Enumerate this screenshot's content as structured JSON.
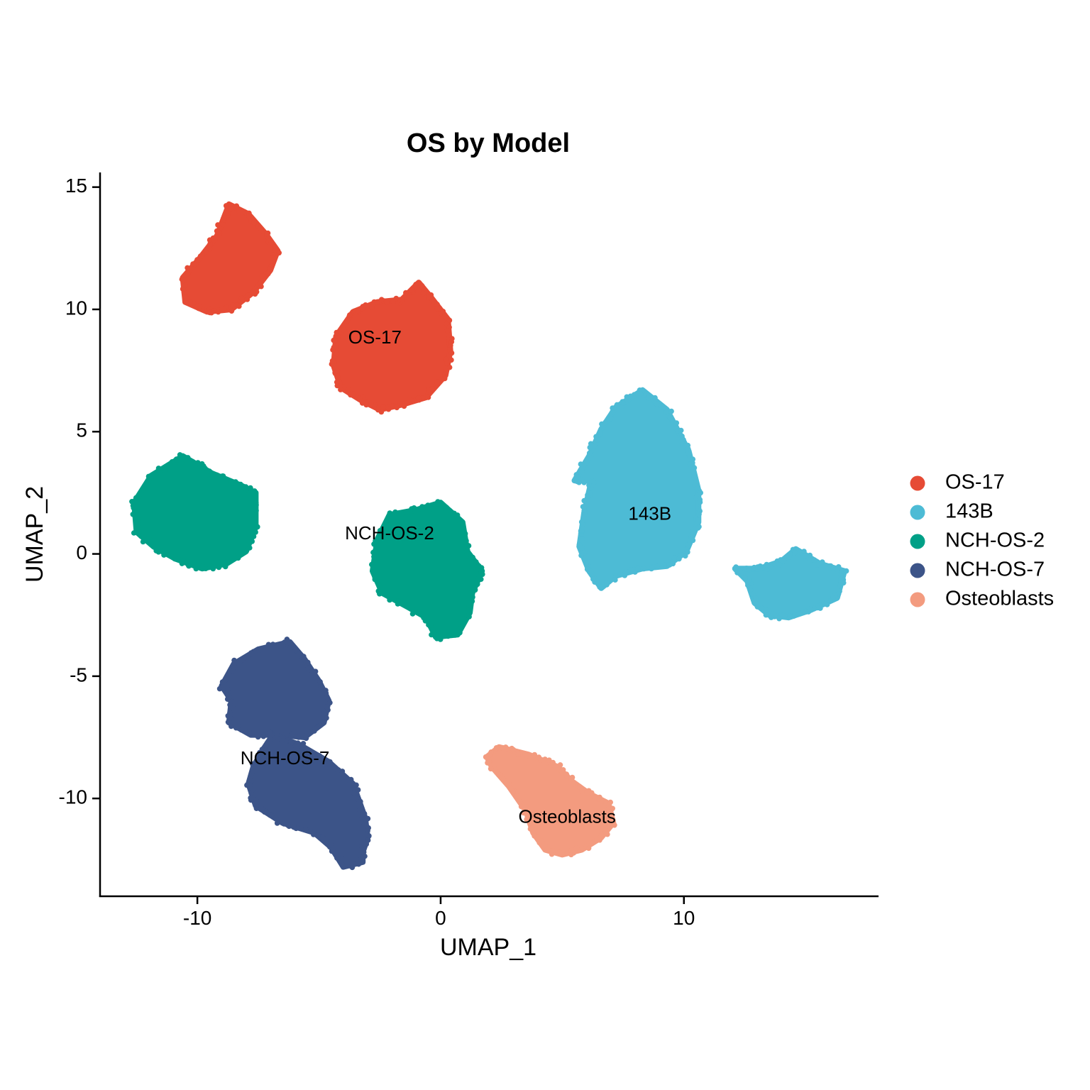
{
  "chart_data": {
    "type": "scatter",
    "title": "OS by Model",
    "xlabel": "UMAP_1",
    "ylabel": "UMAP_2",
    "xlim": [
      -14,
      18
    ],
    "ylim": [
      -14,
      15.6
    ],
    "xticks": [
      -10,
      0,
      10
    ],
    "yticks": [
      -10,
      -5,
      0,
      5,
      10,
      15
    ],
    "grid": false,
    "legend_position": "right",
    "series": [
      {
        "name": "OS-17",
        "color": "#E64B35",
        "clusters": [
          {
            "outline": [
              [
                -8.7,
                14.3
              ],
              [
                -7.9,
                13.9
              ],
              [
                -7.2,
                13.1
              ],
              [
                -6.7,
                12.4
              ],
              [
                -7.0,
                11.6
              ],
              [
                -7.7,
                10.7
              ],
              [
                -8.6,
                10.0
              ],
              [
                -9.6,
                9.9
              ],
              [
                -10.5,
                10.3
              ],
              [
                -10.6,
                11.3
              ],
              [
                -9.9,
                12.1
              ],
              [
                -9.2,
                13.0
              ]
            ]
          },
          {
            "outline": [
              [
                -0.9,
                11.1
              ],
              [
                -0.4,
                10.5
              ],
              [
                0.3,
                9.6
              ],
              [
                0.4,
                8.3
              ],
              [
                0.2,
                7.3
              ],
              [
                -0.6,
                6.4
              ],
              [
                -1.6,
                6.1
              ],
              [
                -2.5,
                5.9
              ],
              [
                -3.3,
                6.3
              ],
              [
                -4.1,
                6.8
              ],
              [
                -4.4,
                7.7
              ],
              [
                -4.3,
                8.9
              ],
              [
                -3.6,
                9.9
              ],
              [
                -2.6,
                10.3
              ],
              [
                -1.6,
                10.4
              ]
            ],
            "label": "OS-17",
            "label_x": -2.7,
            "label_y": 8.8
          }
        ]
      },
      {
        "name": "143B",
        "color": "#4DBBD5",
        "clusters": [
          {
            "outline": [
              [
                8.3,
                6.7
              ],
              [
                9.3,
                5.9
              ],
              [
                10.2,
                4.2
              ],
              [
                10.6,
                2.6
              ],
              [
                10.6,
                1.3
              ],
              [
                10.1,
                0.1
              ],
              [
                9.3,
                -0.5
              ],
              [
                8.3,
                -0.6
              ],
              [
                7.2,
                -0.9
              ],
              [
                6.6,
                -1.4
              ],
              [
                6.1,
                -0.7
              ],
              [
                5.7,
                0.3
              ],
              [
                5.9,
                1.7
              ],
              [
                6.2,
                3.0
              ],
              [
                5.5,
                3.0
              ],
              [
                6.1,
                4.0
              ],
              [
                6.6,
                5.1
              ],
              [
                7.2,
                6.0
              ]
            ],
            "label": "143B",
            "label_x": 8.6,
            "label_y": 1.6
          },
          {
            "outline": [
              [
                14.6,
                0.2
              ],
              [
                15.6,
                -0.4
              ],
              [
                16.6,
                -0.7
              ],
              [
                16.3,
                -1.8
              ],
              [
                15.2,
                -2.3
              ],
              [
                14.3,
                -2.6
              ],
              [
                13.5,
                -2.5
              ],
              [
                12.9,
                -2.0
              ],
              [
                12.6,
                -1.1
              ],
              [
                12.1,
                -0.6
              ],
              [
                13.1,
                -0.6
              ],
              [
                14.0,
                -0.3
              ]
            ]
          }
        ]
      },
      {
        "name": "NCH-OS-2",
        "color": "#00A087",
        "clusters": [
          {
            "outline": [
              [
                -10.6,
                4.0
              ],
              [
                -9.4,
                3.3
              ],
              [
                -8.2,
                2.8
              ],
              [
                -7.6,
                2.5
              ],
              [
                -7.6,
                1.1
              ],
              [
                -8.0,
                0.1
              ],
              [
                -8.8,
                -0.4
              ],
              [
                -9.8,
                -0.6
              ],
              [
                -10.9,
                -0.2
              ],
              [
                -11.8,
                0.3
              ],
              [
                -12.5,
                0.9
              ],
              [
                -12.6,
                2.1
              ],
              [
                -11.9,
                3.2
              ]
            ]
          },
          {
            "outline": [
              [
                0.0,
                2.1
              ],
              [
                0.9,
                1.3
              ],
              [
                1.1,
                0.1
              ],
              [
                1.7,
                -0.7
              ],
              [
                1.3,
                -1.6
              ],
              [
                1.2,
                -2.4
              ],
              [
                0.7,
                -3.3
              ],
              [
                -0.2,
                -3.4
              ],
              [
                -0.6,
                -2.6
              ],
              [
                -1.3,
                -2.2
              ],
              [
                -2.4,
                -1.6
              ],
              [
                -2.8,
                -0.7
              ],
              [
                -2.6,
                0.6
              ],
              [
                -2.1,
                1.6
              ],
              [
                -1.0,
                1.8
              ]
            ],
            "label": "NCH-OS-2",
            "label_x": -2.1,
            "label_y": 0.8
          }
        ]
      },
      {
        "name": "NCH-OS-7",
        "color": "#3C5488",
        "clusters": [
          {
            "outline": [
              [
                -6.2,
                -3.6
              ],
              [
                -5.6,
                -4.3
              ],
              [
                -5.0,
                -5.2
              ],
              [
                -4.6,
                -6.0
              ],
              [
                -4.8,
                -6.9
              ],
              [
                -5.6,
                -7.5
              ],
              [
                -6.6,
                -7.4
              ],
              [
                -7.8,
                -7.4
              ],
              [
                -8.7,
                -6.9
              ],
              [
                -8.6,
                -6.0
              ],
              [
                -9.0,
                -5.4
              ],
              [
                -8.5,
                -4.5
              ],
              [
                -7.5,
                -3.9
              ]
            ]
          },
          {
            "outline": [
              [
                -6.9,
                -7.4
              ],
              [
                -5.8,
                -7.8
              ],
              [
                -4.6,
                -8.5
              ],
              [
                -3.6,
                -9.4
              ],
              [
                -3.1,
                -10.8
              ],
              [
                -3.0,
                -11.6
              ],
              [
                -3.2,
                -12.2
              ],
              [
                -3.2,
                -12.6
              ],
              [
                -4.0,
                -12.8
              ],
              [
                -4.5,
                -12.0
              ],
              [
                -5.2,
                -11.4
              ],
              [
                -6.5,
                -11.0
              ],
              [
                -7.6,
                -10.3
              ],
              [
                -7.9,
                -9.4
              ],
              [
                -7.7,
                -8.7
              ],
              [
                -7.3,
                -8.0
              ]
            ],
            "label": "NCH-OS-7",
            "label_x": -6.4,
            "label_y": -8.4
          }
        ]
      },
      {
        "name": "Osteoblasts",
        "color": "#F39B7F",
        "clusters": [
          {
            "outline": [
              [
                2.4,
                -7.9
              ],
              [
                3.6,
                -8.2
              ],
              [
                4.8,
                -8.7
              ],
              [
                5.4,
                -9.3
              ],
              [
                6.1,
                -9.8
              ],
              [
                6.9,
                -10.2
              ],
              [
                7.1,
                -11.0
              ],
              [
                6.6,
                -11.6
              ],
              [
                5.8,
                -12.1
              ],
              [
                5.0,
                -12.3
              ],
              [
                4.3,
                -12.1
              ],
              [
                3.8,
                -11.4
              ],
              [
                3.5,
                -10.5
              ],
              [
                2.8,
                -9.5
              ],
              [
                2.1,
                -8.7
              ],
              [
                1.9,
                -8.3
              ]
            ],
            "label": "Osteoblasts",
            "label_x": 5.2,
            "label_y": -10.8
          }
        ]
      }
    ]
  }
}
